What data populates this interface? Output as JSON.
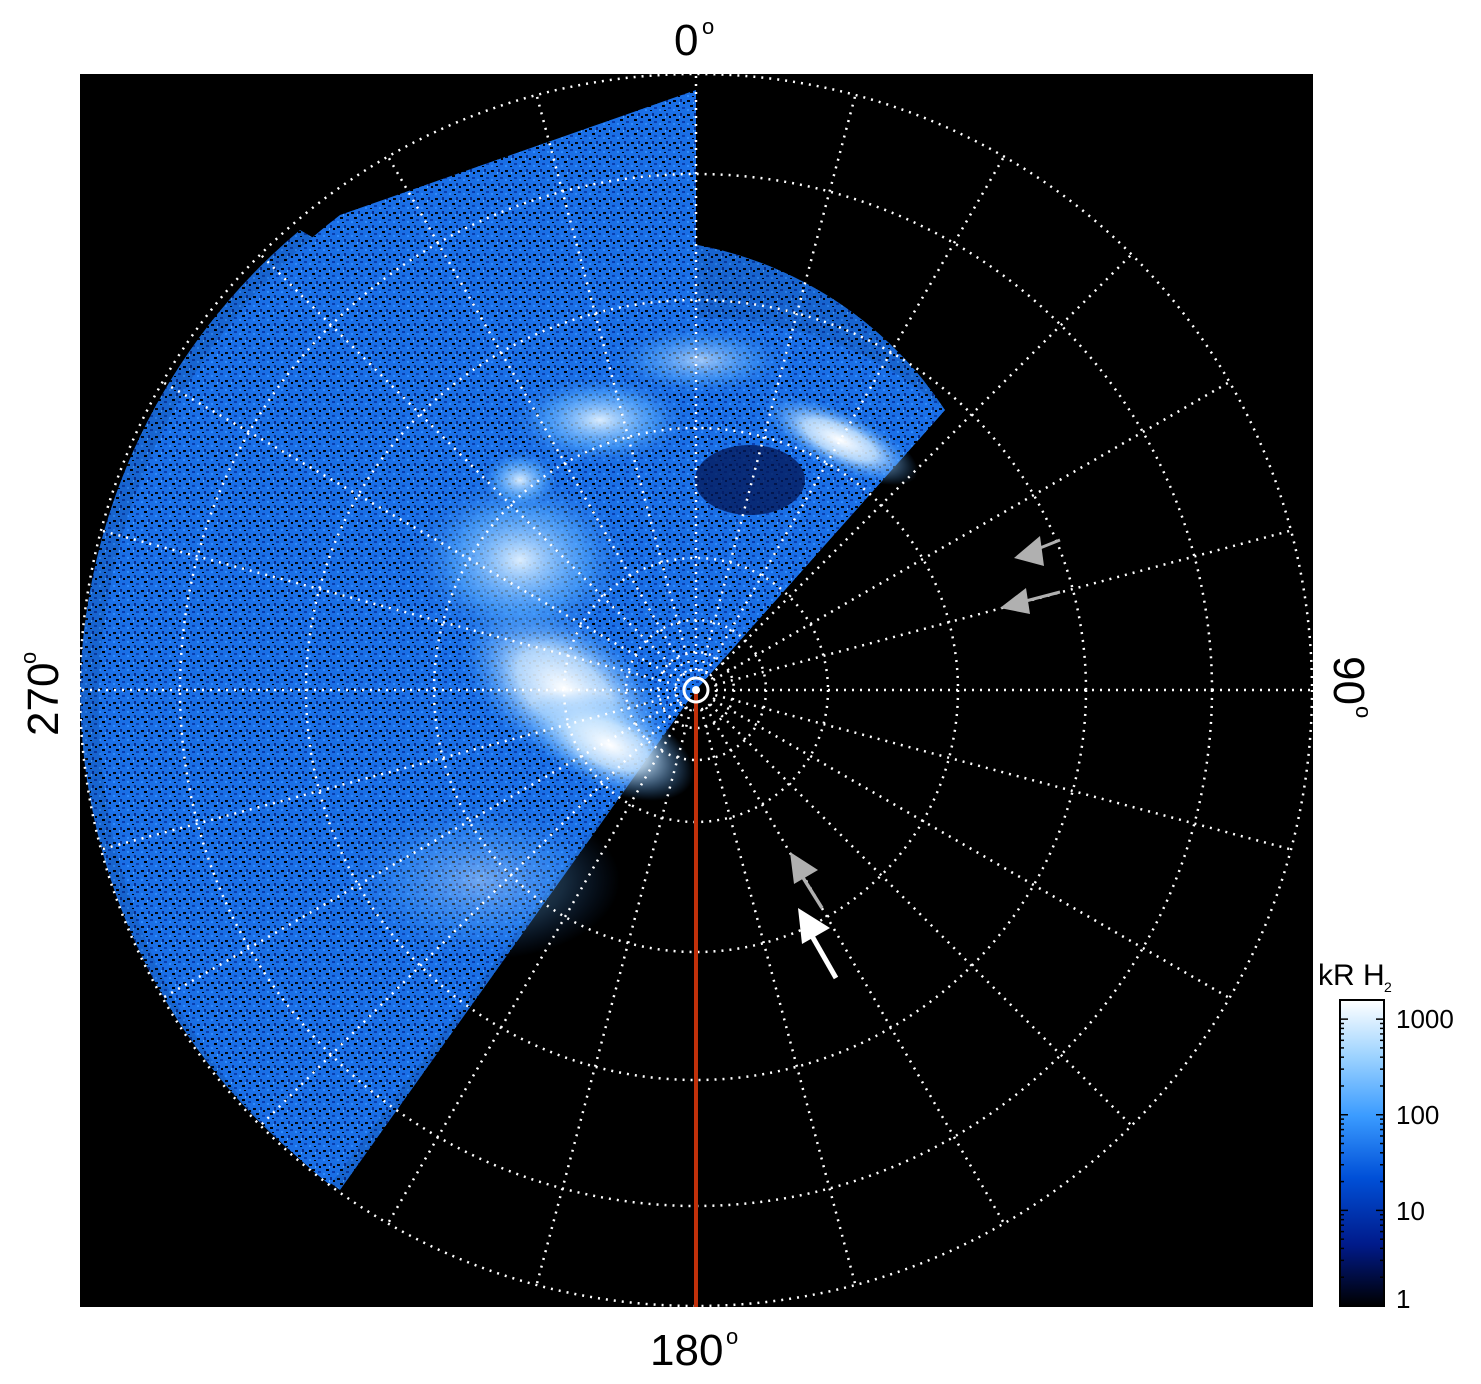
{
  "labels": {
    "top": "0",
    "bottom": "180",
    "left": "270",
    "right": "90",
    "degree": "o"
  },
  "colorbar": {
    "title": "kR H",
    "subscript": "2",
    "ticks": [
      "1000",
      "100",
      "10",
      "1"
    ],
    "colors": [
      "#ffffff",
      "#9fd4ff",
      "#3a9bff",
      "#0050d8",
      "#001a8a",
      "#000000"
    ]
  },
  "colors": {
    "background": "#000000",
    "grid": "#ffffff",
    "meridian_line": "#c0300a",
    "arrow_white": "#ffffff",
    "arrow_gray": "#b0b0b0"
  },
  "icons": [
    "white-arrow-icon",
    "gray-arrow-icon",
    "pole-marker-icon"
  ]
}
